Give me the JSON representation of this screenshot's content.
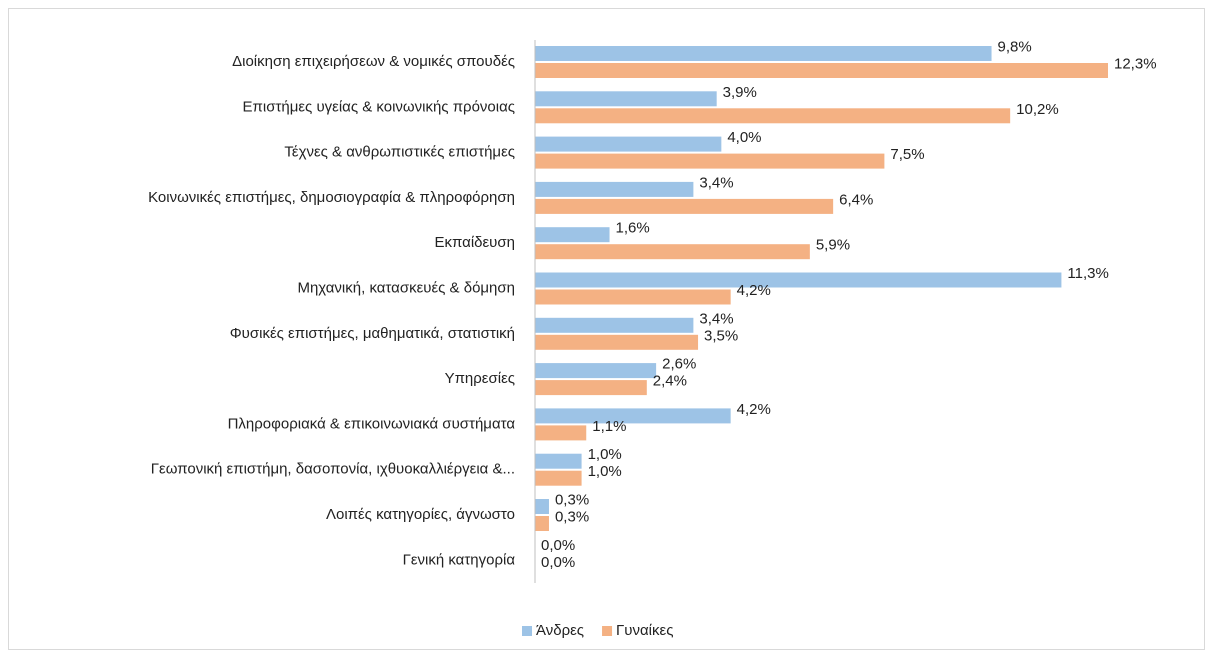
{
  "chart_data": {
    "type": "bar",
    "orientation": "horizontal",
    "categories": [
      "Διοίκηση επιχειρήσεων & νομικές σπουδές",
      "Επιστήμες υγείας & κοινωνικής πρόνοιας",
      "Τέχνες & ανθρωπιστικές επιστήμες",
      "Κοινωνικές επιστήμες, δημοσιογραφία & πληροφόρηση",
      "Εκπαίδευση",
      "Μηχανική, κατασκευές & δόμηση",
      "Φυσικές επιστήμες, μαθηματικά, στατιστική",
      "Υπηρεσίες",
      "Πληροφοριακά & επικοινωνιακά συστήματα",
      "Γεωπονική επιστήμη, δασοπονία, ιχθυοκαλλιέργεια &...",
      "Λοιπές κατηγορίες, άγνωστο",
      "Γενική κατηγορία"
    ],
    "series": [
      {
        "name": "Άνδρες",
        "color": "#9dc3e6",
        "values": [
          9.8,
          3.9,
          4.0,
          3.4,
          1.6,
          11.3,
          3.4,
          2.6,
          4.2,
          1.0,
          0.3,
          0.0
        ],
        "value_labels": [
          "9,8%",
          "3,9%",
          "4,0%",
          "3,4%",
          "1,6%",
          "11,3%",
          "3,4%",
          "2,6%",
          "4,2%",
          "1,0%",
          "0,3%",
          "0,0%"
        ]
      },
      {
        "name": "Γυναίκες",
        "color": "#f4b183",
        "values": [
          12.3,
          10.2,
          7.5,
          6.4,
          5.9,
          4.2,
          3.5,
          2.4,
          1.1,
          1.0,
          0.3,
          0.0
        ],
        "value_labels": [
          "12,3%",
          "10,2%",
          "7,5%",
          "6,4%",
          "5,9%",
          "4,2%",
          "3,5%",
          "2,4%",
          "1,1%",
          "1,0%",
          "0,3%",
          "0,0%"
        ]
      }
    ],
    "legend": "bottom"
  }
}
